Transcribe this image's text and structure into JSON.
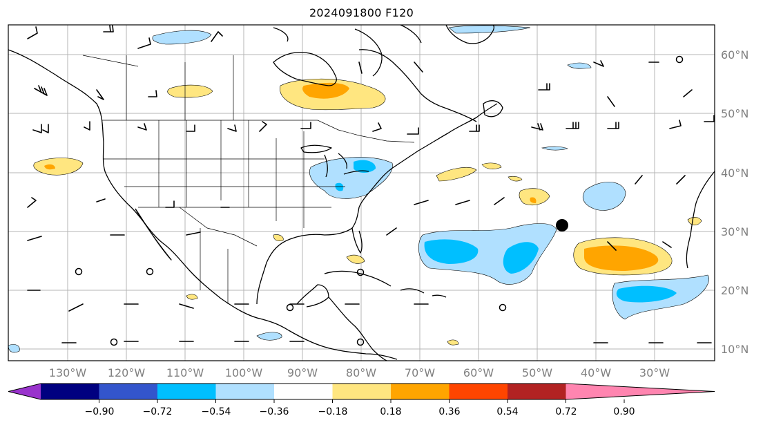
{
  "title": "2024091800 F120",
  "lon_labels": [
    "130°W",
    "120°W",
    "110°W",
    "100°W",
    "90°W",
    "80°W",
    "70°W",
    "60°W",
    "50°W",
    "40°W",
    "30°W"
  ],
  "lat_labels": [
    "10°N",
    "20°N",
    "30°N",
    "40°N",
    "50°N",
    "60°N"
  ],
  "colorbar": {
    "tick_labels": [
      "−0.90",
      "−0.72",
      "−0.54",
      "−0.36",
      "−0.18",
      "0.18",
      "0.36",
      "0.54",
      "0.72",
      "0.90"
    ],
    "colors": [
      "#9933cc",
      "#000080",
      "#3355cc",
      "#00bfff",
      "#b0e0ff",
      "#ffffff",
      "#ffe680",
      "#ffa500",
      "#ff4500",
      "#b22222",
      "#ff85b0"
    ]
  },
  "colors": {
    "land_outline": "#000000",
    "grid": "#b4b4b4",
    "axis_label": "#808080",
    "storm_marker": "#000000"
  }
}
